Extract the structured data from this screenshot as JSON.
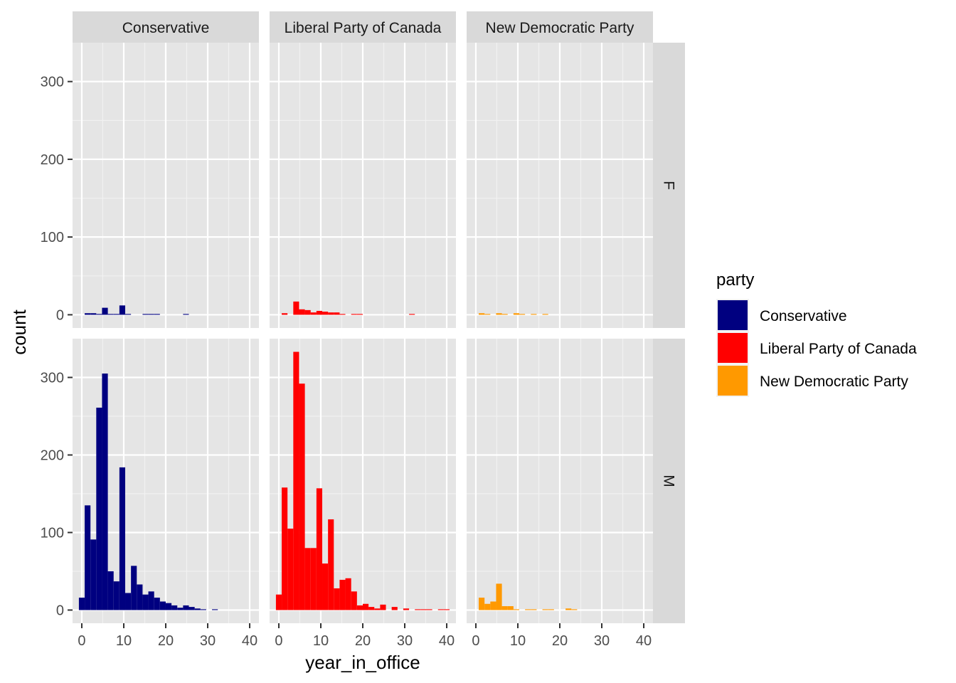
{
  "chart_data": {
    "type": "bar",
    "subtype": "faceted-histogram",
    "xlabel": "year_in_office",
    "ylabel": "count",
    "xlim": [
      -2.2,
      42.2
    ],
    "ylim": [
      -17,
      350
    ],
    "x_ticks": [
      0,
      10,
      20,
      30,
      40
    ],
    "y_ticks": [
      0,
      100,
      200,
      300
    ],
    "bin_width": 1.379,
    "bin_start": -0.69,
    "grid": true,
    "legend": {
      "title": "party",
      "position": "right",
      "entries": [
        {
          "label": "Conservative",
          "color": "#000080"
        },
        {
          "label": "Liberal Party of Canada",
          "color": "#ff0000"
        },
        {
          "label": "New Democratic Party",
          "color": "#ff9900"
        }
      ]
    },
    "col_facets": [
      "Conservative",
      "Liberal Party of Canada",
      "New Democratic Party"
    ],
    "row_facets": [
      "F",
      "M"
    ],
    "panels": [
      {
        "col": "Conservative",
        "row": "F",
        "color": "#000080",
        "counts": [
          0,
          2,
          2,
          1,
          9,
          1,
          1,
          12,
          1,
          0,
          0,
          1,
          1,
          1,
          0,
          0,
          0,
          0,
          1,
          0,
          0,
          0,
          0,
          0,
          0,
          0,
          0,
          0,
          0,
          0
        ]
      },
      {
        "col": "Liberal Party of Canada",
        "row": "F",
        "color": "#ff0000",
        "counts": [
          0,
          2,
          0,
          17,
          7,
          6,
          3,
          5,
          4,
          3,
          3,
          1,
          0,
          1,
          1,
          0,
          0,
          0,
          0,
          0,
          0,
          0,
          0,
          1,
          0,
          0,
          0,
          0,
          0,
          0
        ]
      },
      {
        "col": "New Democratic Party",
        "row": "F",
        "color": "#ff9900",
        "counts": [
          0,
          2,
          1,
          0,
          2,
          1,
          0,
          2,
          1,
          0,
          1,
          0,
          1,
          0,
          0,
          0,
          0,
          0,
          0,
          0,
          0,
          0,
          0,
          0,
          0,
          0,
          0,
          0,
          0,
          0
        ]
      },
      {
        "col": "Conservative",
        "row": "M",
        "color": "#000080",
        "counts": [
          16,
          135,
          91,
          261,
          305,
          50,
          37,
          184,
          22,
          57,
          33,
          20,
          24,
          16,
          11,
          9,
          6,
          3,
          6,
          4,
          2,
          1,
          0,
          1,
          0,
          0,
          0,
          0,
          0,
          0
        ]
      },
      {
        "col": "Liberal Party of Canada",
        "row": "M",
        "color": "#ff0000",
        "counts": [
          20,
          158,
          105,
          333,
          292,
          80,
          80,
          157,
          60,
          117,
          28,
          39,
          41,
          24,
          6,
          8,
          4,
          2,
          7,
          0,
          4,
          0,
          2,
          0,
          1,
          1,
          1,
          0,
          1,
          1
        ]
      },
      {
        "col": "New Democratic Party",
        "row": "M",
        "color": "#ff9900",
        "counts": [
          0,
          16,
          8,
          11,
          34,
          5,
          5,
          1,
          0,
          1,
          1,
          0,
          1,
          1,
          0,
          0,
          2,
          1,
          0,
          0,
          0,
          0,
          0,
          0,
          0,
          0,
          0,
          0,
          0,
          0
        ]
      }
    ]
  }
}
